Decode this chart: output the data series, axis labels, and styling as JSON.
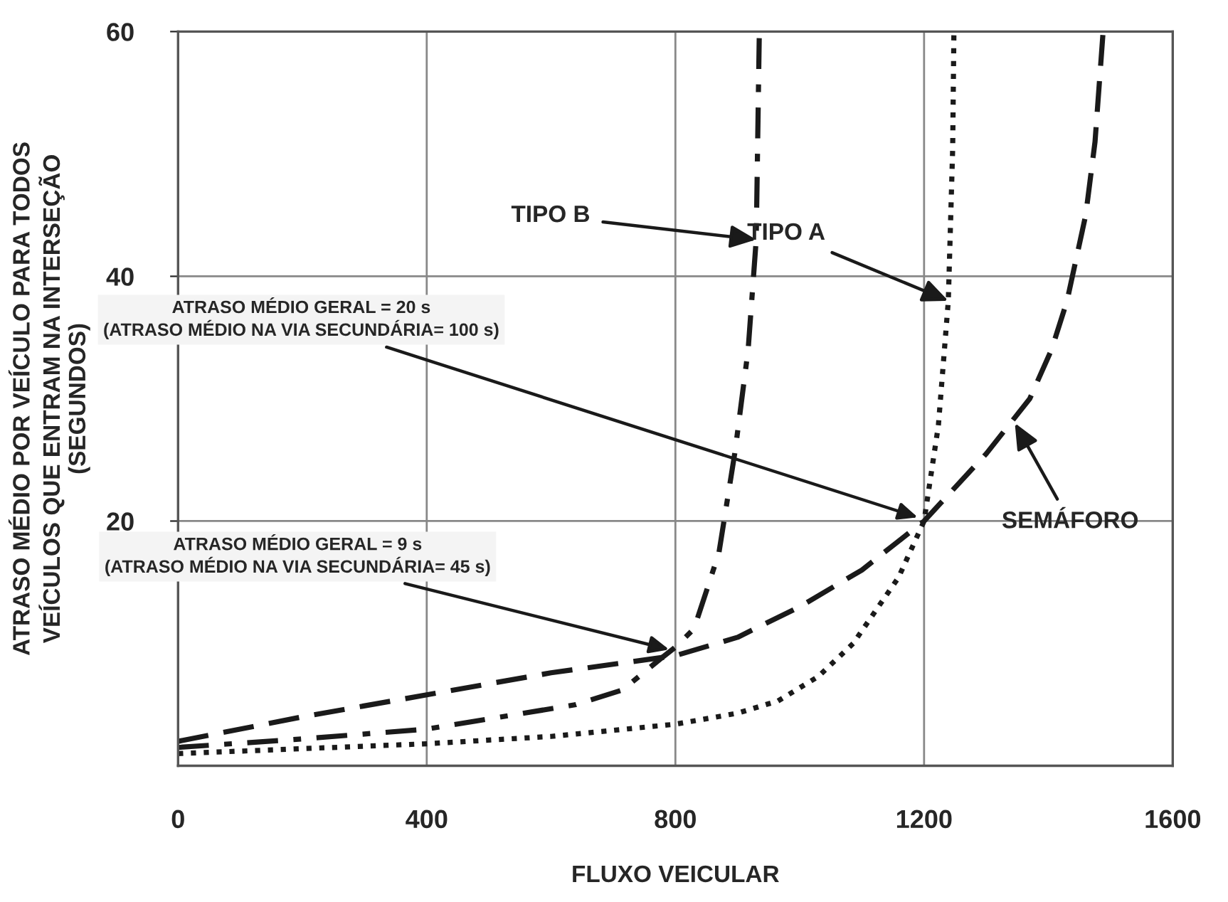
{
  "chart_data": {
    "type": "line",
    "xlabel": "FLUXO VEICULAR",
    "ylabel": "ATRASO MÉDIO POR VEÍCULO PARA TODOS\nVEÍCULOS QUE ENTRAM NA INTERSEÇÃO\n(SEGUNDOS)",
    "xlim": [
      0,
      1600
    ],
    "xticks": [
      0,
      400,
      800,
      1200,
      1600
    ],
    "ylim": [
      0,
      60
    ],
    "yticks": [
      20,
      40,
      60
    ],
    "grid": true,
    "marker": "none",
    "series": [
      {
        "color": "#1a1a1a",
        "line_style": "dashed",
        "x": [
          0,
          200,
          400,
          600,
          800,
          900,
          1000,
          1100,
          1200,
          1300,
          1370,
          1405,
          1430,
          1460,
          1475,
          1488
        ],
        "values": [
          2,
          4,
          5.8,
          7.6,
          9,
          10.5,
          13,
          16,
          20,
          25.5,
          30,
          34,
          38,
          45,
          51,
          60
        ]
      },
      {
        "color": "#1a1a1a",
        "line_style": "dashdot",
        "x": [
          0,
          200,
          400,
          520,
          640,
          715,
          775,
          800,
          830,
          870,
          896,
          917,
          930,
          935
        ],
        "values": [
          1.5,
          2.2,
          3,
          4,
          5,
          6.2,
          8.7,
          9.7,
          11.2,
          17.4,
          25.7,
          34,
          43,
          60
        ]
      },
      {
        "color": "#1a1a1a",
        "line_style": "dotted",
        "x": [
          0,
          200,
          400,
          600,
          800,
          900,
          965,
          1030,
          1086,
          1159,
          1200,
          1223,
          1239,
          1246,
          1248
        ],
        "values": [
          1,
          1.4,
          1.8,
          2.4,
          3.4,
          4.3,
          5.3,
          7.3,
          10,
          15.4,
          20,
          27.8,
          38,
          50.4,
          60
        ]
      }
    ],
    "annotations": [
      {
        "text": "TIPO B",
        "x": 930,
        "y": 43
      },
      {
        "text": "TIPO A",
        "x": 1239,
        "y": 38
      },
      {
        "text": "SEMÁFORO",
        "x": 1346,
        "y": 28
      },
      {
        "text": "ATRASO MÉDIO GERAL = 20 s\n(ATRASO MÉDIO NA VIA SECUNDÁRIA= 100 s)",
        "x": 1190,
        "y": 20.3
      },
      {
        "text": "ATRASO MÉDIO GERAL = 9 s\n(ATRASO MÉDIO NA VIA SECUNDÁRIA= 45 s)",
        "x": 790,
        "y": 9.5
      }
    ]
  }
}
